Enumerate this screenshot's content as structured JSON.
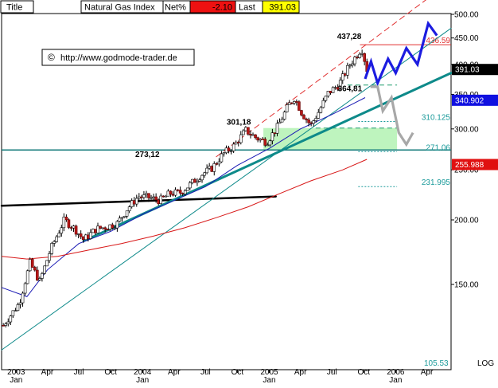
{
  "header": {
    "title_label": "Title",
    "instrument": "Natural Gas Index",
    "net_label": "Net%",
    "net_value": "-2.10",
    "last_label": "Last",
    "last_value": "391.03"
  },
  "watermark": {
    "symbol": "©",
    "text": "http://www.godmode-trader.de"
  },
  "corner_label": "LOG",
  "chart_data": {
    "type": "candlestick",
    "title": "Natural Gas Index",
    "y_scale": "log",
    "ylim": [
      105.53,
      500
    ],
    "xlim": [
      "2002-11-20",
      "2006-06-10"
    ],
    "y_ticks": [
      150,
      200,
      250,
      300,
      350,
      400,
      450,
      500
    ],
    "y_tick_labels": [
      "150.00",
      "200.00",
      "250.00",
      "300.00",
      "350.00",
      "400.00",
      "450.00",
      "500.00"
    ],
    "x_ticks": [
      {
        "date": "2003-01-01",
        "label": "2003",
        "sub": "Jan"
      },
      {
        "date": "2003-04-01",
        "label": "Apr",
        "sub": ""
      },
      {
        "date": "2003-07-01",
        "label": "Jul",
        "sub": ""
      },
      {
        "date": "2003-10-01",
        "label": "Oct",
        "sub": ""
      },
      {
        "date": "2004-01-01",
        "label": "2004",
        "sub": "Jan"
      },
      {
        "date": "2004-04-01",
        "label": "Apr",
        "sub": ""
      },
      {
        "date": "2004-07-01",
        "label": "Jul",
        "sub": ""
      },
      {
        "date": "2004-10-01",
        "label": "Oct",
        "sub": ""
      },
      {
        "date": "2005-01-01",
        "label": "2005",
        "sub": "Jan"
      },
      {
        "date": "2005-04-01",
        "label": "Apr",
        "sub": ""
      },
      {
        "date": "2005-07-01",
        "label": "Jul",
        "sub": ""
      },
      {
        "date": "2005-10-01",
        "label": "Oct",
        "sub": ""
      },
      {
        "date": "2006-01-01",
        "label": "2006",
        "sub": "Jan"
      },
      {
        "date": "2006-04-01",
        "label": "Apr",
        "sub": ""
      }
    ],
    "price_anchors": [
      {
        "date": "2002-11-25",
        "value": 125
      },
      {
        "date": "2003-01-10",
        "value": 138
      },
      {
        "date": "2003-02-10",
        "value": 165
      },
      {
        "date": "2003-03-10",
        "value": 152
      },
      {
        "date": "2003-04-10",
        "value": 175
      },
      {
        "date": "2003-05-20",
        "value": 200
      },
      {
        "date": "2003-06-20",
        "value": 192
      },
      {
        "date": "2003-07-15",
        "value": 183
      },
      {
        "date": "2003-08-20",
        "value": 192
      },
      {
        "date": "2003-09-20",
        "value": 194
      },
      {
        "date": "2003-10-20",
        "value": 197
      },
      {
        "date": "2003-11-20",
        "value": 211
      },
      {
        "date": "2003-12-20",
        "value": 222
      },
      {
        "date": "2004-01-20",
        "value": 221
      },
      {
        "date": "2004-02-20",
        "value": 218
      },
      {
        "date": "2004-03-20",
        "value": 225
      },
      {
        "date": "2004-04-20",
        "value": 226
      },
      {
        "date": "2004-05-20",
        "value": 235
      },
      {
        "date": "2004-06-20",
        "value": 245
      },
      {
        "date": "2004-07-20",
        "value": 252
      },
      {
        "date": "2004-08-20",
        "value": 268
      },
      {
        "date": "2004-09-20",
        "value": 278
      },
      {
        "date": "2004-10-25",
        "value": 298
      },
      {
        "date": "2004-11-25",
        "value": 288
      },
      {
        "date": "2004-12-25",
        "value": 283
      },
      {
        "date": "2005-01-25",
        "value": 303
      },
      {
        "date": "2005-02-25",
        "value": 333
      },
      {
        "date": "2005-03-15",
        "value": 345
      },
      {
        "date": "2005-04-05",
        "value": 322
      },
      {
        "date": "2005-05-01",
        "value": 305
      },
      {
        "date": "2005-05-25",
        "value": 325
      },
      {
        "date": "2005-06-20",
        "value": 352
      },
      {
        "date": "2005-07-20",
        "value": 365
      },
      {
        "date": "2005-08-20",
        "value": 398
      },
      {
        "date": "2005-09-25",
        "value": 430
      },
      {
        "date": "2005-10-10",
        "value": 391
      }
    ],
    "moving_averages": [
      {
        "name": "ma-short",
        "color": "#1a1ab4",
        "points": [
          {
            "date": "2002-11-20",
            "value": 148
          },
          {
            "date": "2003-02-01",
            "value": 142
          },
          {
            "date": "2003-04-01",
            "value": 160
          },
          {
            "date": "2003-07-01",
            "value": 180
          },
          {
            "date": "2003-10-01",
            "value": 190
          },
          {
            "date": "2004-01-01",
            "value": 205
          },
          {
            "date": "2004-04-01",
            "value": 218
          },
          {
            "date": "2004-07-01",
            "value": 232
          },
          {
            "date": "2004-10-01",
            "value": 255
          },
          {
            "date": "2005-01-01",
            "value": 275
          },
          {
            "date": "2005-04-01",
            "value": 300
          },
          {
            "date": "2005-07-01",
            "value": 320
          },
          {
            "date": "2005-10-05",
            "value": 345
          }
        ]
      },
      {
        "name": "ma-long",
        "color": "#d81818",
        "points": [
          {
            "date": "2002-11-20",
            "value": 170
          },
          {
            "date": "2003-02-01",
            "value": 168
          },
          {
            "date": "2003-05-01",
            "value": 170
          },
          {
            "date": "2003-08-01",
            "value": 175
          },
          {
            "date": "2003-11-01",
            "value": 180
          },
          {
            "date": "2004-02-01",
            "value": 186
          },
          {
            "date": "2004-05-01",
            "value": 193
          },
          {
            "date": "2004-08-01",
            "value": 202
          },
          {
            "date": "2004-11-01",
            "value": 212
          },
          {
            "date": "2005-02-01",
            "value": 225
          },
          {
            "date": "2005-05-01",
            "value": 238
          },
          {
            "date": "2005-08-01",
            "value": 250
          },
          {
            "date": "2005-10-10",
            "value": 262
          }
        ]
      }
    ],
    "trendlines": [
      {
        "name": "trend-black",
        "color": "#000000",
        "width": 2.5,
        "from": {
          "date": "2002-11-20",
          "value": 213
        },
        "to": {
          "date": "2005-01-20",
          "value": 222
        }
      },
      {
        "name": "trend-teal-support",
        "color": "#0e8a8a",
        "width": 3,
        "from": {
          "date": "2003-07-15",
          "value": 182
        },
        "to": {
          "date": "2006-06-10",
          "value": 385
        }
      },
      {
        "name": "trend-thin-channel",
        "color": "#0e8a8a",
        "width": 1,
        "from": {
          "date": "2002-11-20",
          "value": 112
        },
        "to": {
          "date": "2006-06-10",
          "value": 470
        }
      },
      {
        "name": "trend-red-dashed",
        "color": "#e03030",
        "width": 1,
        "dash": "7,5",
        "from": {
          "date": "2004-08-01",
          "value": 265
        },
        "to": {
          "date": "2006-06-10",
          "value": 580
        }
      }
    ],
    "support_line": {
      "value": 273.12,
      "label": "273,12",
      "color": "#137a7a"
    },
    "green_zone": {
      "from_date": "2004-12-15",
      "to_date": "2006-01-05",
      "low": 273.12,
      "high": 301.18,
      "color": "#a8f0a8"
    },
    "horizontal_levels": [
      {
        "value": 436.59,
        "label": "436.59",
        "color": "#e03030",
        "style": "solid",
        "from_date": "2005-09-20",
        "to_date": "2006-06-10"
      },
      {
        "value": 364.81,
        "label": "",
        "color": "#1a9a6a",
        "style": "dashed",
        "from_date": "2005-08-15",
        "to_date": "2006-01-05"
      },
      {
        "value": 310.125,
        "label": "310.125",
        "color": "#1a9a9a",
        "style": "dotted",
        "from_date": "2005-09-15",
        "to_date": "2006-01-05"
      },
      {
        "value": 301.18,
        "label": "",
        "color": "#1a9a6a",
        "style": "dashed",
        "from_date": "2005-05-15",
        "to_date": "2006-01-05"
      },
      {
        "value": 271.06,
        "label": "271.06",
        "color": "#1a9a9a",
        "style": "dotted",
        "from_date": "2005-09-15",
        "to_date": "2006-01-05"
      },
      {
        "value": 231.995,
        "label": "231.995",
        "color": "#1a9a9a",
        "style": "dotted",
        "from_date": "2005-09-15",
        "to_date": "2006-01-05"
      }
    ],
    "annotations": [
      {
        "label": "437,28",
        "date": "2005-08-20",
        "value": 448
      },
      {
        "label": "364,81",
        "date": "2005-08-22",
        "value": 355
      },
      {
        "label": "301,18",
        "date": "2004-10-05",
        "value": 306
      },
      {
        "label": "273,12",
        "date": "2004-01-15",
        "value": 265
      }
    ],
    "scenario_bull": {
      "color": "#1c1ce0",
      "points": [
        {
          "date": "2005-10-05",
          "value": 375
        },
        {
          "date": "2005-10-22",
          "value": 405
        },
        {
          "date": "2005-11-10",
          "value": 368
        },
        {
          "date": "2005-12-10",
          "value": 410
        },
        {
          "date": "2006-01-01",
          "value": 385
        },
        {
          "date": "2006-02-01",
          "value": 430
        },
        {
          "date": "2006-03-05",
          "value": 400
        },
        {
          "date": "2006-04-05",
          "value": 480
        },
        {
          "date": "2006-04-30",
          "value": 455
        }
      ]
    },
    "scenario_bear": {
      "color": "#a8a8a8",
      "points": [
        {
          "date": "2005-10-20",
          "value": 362
        },
        {
          "date": "2005-11-10",
          "value": 362
        },
        {
          "date": "2005-11-25",
          "value": 325
        },
        {
          "date": "2005-12-20",
          "value": 345
        },
        {
          "date": "2006-01-10",
          "value": 295
        },
        {
          "date": "2006-02-01",
          "value": 280
        },
        {
          "date": "2006-02-20",
          "value": 295
        }
      ]
    },
    "price_boxes": [
      {
        "value": 391.03,
        "label": "391.03",
        "bg": "#000000",
        "fg": "#ffffff"
      },
      {
        "value": 340.902,
        "label": "340.902",
        "bg": "#1010e0",
        "fg": "#ffffff"
      },
      {
        "value": 255.988,
        "label": "255.988",
        "bg": "#e01010",
        "fg": "#ffffff"
      }
    ],
    "min_label": {
      "value": 105.53,
      "label": "105.53"
    }
  }
}
